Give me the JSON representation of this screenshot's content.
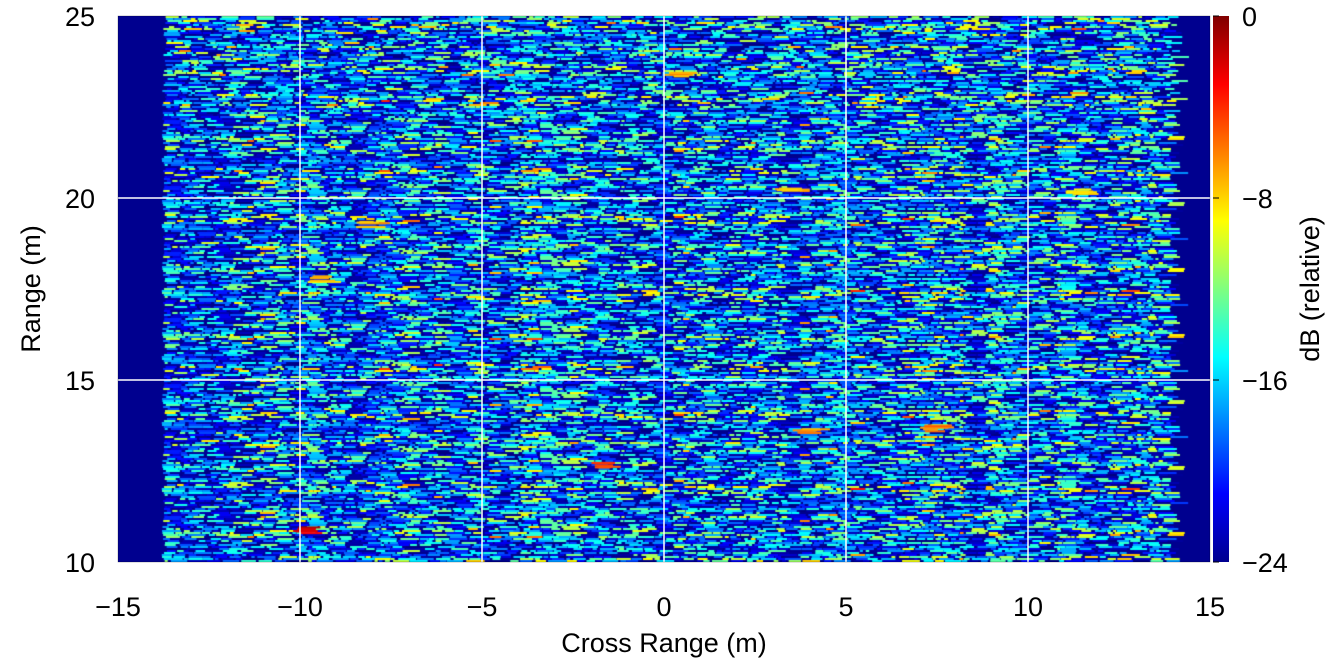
{
  "chart_data": {
    "type": "heatmap",
    "title": "",
    "xlabel": "Cross Range (m)",
    "ylabel": "Range (m)",
    "colorbar_label": "dB (relative)",
    "xlim": [
      -15,
      15
    ],
    "ylim": [
      10,
      25
    ],
    "clim": [
      -24,
      0
    ],
    "colormap": "jet",
    "x_ticks": [
      -15,
      -10,
      -5,
      0,
      5,
      10,
      15
    ],
    "x_tick_labels": [
      "−15",
      "−10",
      "−5",
      "0",
      "5",
      "10",
      "15"
    ],
    "y_ticks": [
      10,
      15,
      20,
      25
    ],
    "y_tick_labels": [
      "10",
      "15",
      "20",
      "25"
    ],
    "colorbar_ticks": [
      0,
      -8,
      -16,
      -24
    ],
    "colorbar_tick_labels": [
      "0",
      "−8",
      "−16",
      "−24"
    ],
    "grid": true,
    "grid_color": "#ffffff",
    "background_color": "#00008f",
    "data_extent_x": [
      -13.8,
      14.0
    ],
    "notable_features": [
      {
        "x": -9.7,
        "y": 10.9,
        "value_db": -1
      },
      {
        "x": -1.5,
        "y": 12.7,
        "value_db": -4
      },
      {
        "x": 4.0,
        "y": 13.6,
        "value_db": -5
      },
      {
        "x": 7.5,
        "y": 13.7,
        "value_db": -5
      },
      {
        "x": -8.0,
        "y": 19.3,
        "value_db": -6
      },
      {
        "x": 3.5,
        "y": 20.3,
        "value_db": -6
      },
      {
        "x": 0.5,
        "y": 23.4,
        "value_db": -6
      },
      {
        "x": -9.3,
        "y": 17.8,
        "value_db": -7
      },
      {
        "x": 11.5,
        "y": 20.2,
        "value_db": -7
      }
    ]
  }
}
